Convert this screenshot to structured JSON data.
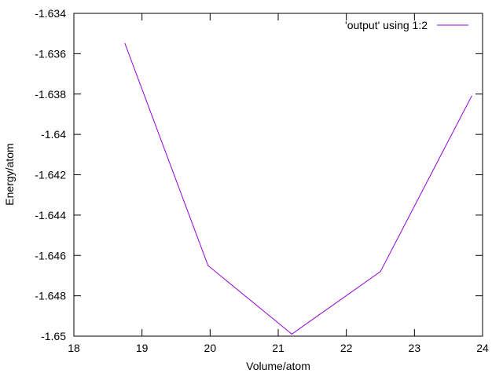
{
  "chart_data": {
    "type": "line",
    "title": "",
    "xlabel": "Volume/atom",
    "ylabel": "Energy/atom",
    "xlim": [
      18,
      24
    ],
    "ylim": [
      -1.65,
      -1.634
    ],
    "xticks": [
      "18",
      "19",
      "20",
      "21",
      "22",
      "23",
      "24"
    ],
    "yticks": [
      "-1.65",
      "-1.648",
      "-1.646",
      "-1.644",
      "-1.642",
      "-1.64",
      "-1.638",
      "-1.636",
      "-1.634"
    ],
    "grid": false,
    "legend_position": "top-right",
    "series": [
      {
        "name": "'output' using 1:2",
        "color": "#9400d3",
        "x": [
          18.75,
          19.97,
          21.2,
          22.5,
          23.84
        ],
        "y": [
          -1.6355,
          -1.6465,
          -1.6499,
          -1.6468,
          -1.6381
        ]
      }
    ]
  }
}
